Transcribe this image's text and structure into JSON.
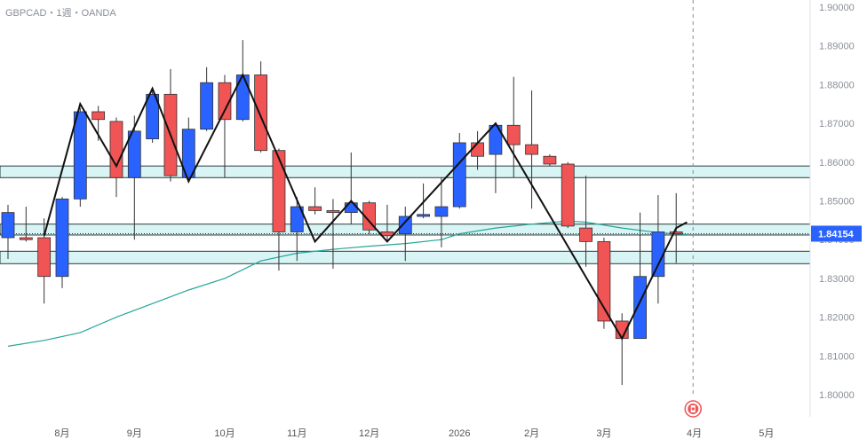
{
  "header": {
    "symbol": "GBPCAD",
    "timeframe": "1週",
    "broker": "OANDA",
    "separator": "・"
  },
  "colors": {
    "up_candle": "#2962ff",
    "down_candle": "#f05454",
    "wick": "#333333",
    "zigzag": "#111111",
    "moving_average": "#26a69a",
    "zone_fill": "#d8f4f4",
    "zone_border": "#2b3a3a",
    "price_label_bg": "#2962ff",
    "price_label_text": "#ffffff",
    "axis_text": "#8a8f99",
    "current_marker": "#f05454"
  },
  "chart_data": {
    "type": "candlestick",
    "y_range": [
      1.8,
      1.9
    ],
    "y_ticks": [
      "1.80000",
      "1.81000",
      "1.82000",
      "1.83000",
      "1.84000",
      "1.85000",
      "1.86000",
      "1.87000",
      "1.88000",
      "1.89000",
      "1.90000"
    ],
    "x_tick_labels": [
      "8月",
      "9月",
      "10月",
      "11月",
      "12月",
      "2026",
      "2月",
      "3月",
      "4月",
      "5月"
    ],
    "x_tick_weeks": [
      3,
      7,
      12,
      16,
      20,
      25,
      29,
      33,
      38,
      42
    ],
    "current_price": "1.84154",
    "candles": [
      {
        "o": 1.8405,
        "h": 1.849,
        "l": 1.835,
        "c": 1.847
      },
      {
        "o": 1.8405,
        "h": 1.8485,
        "l": 1.8395,
        "c": 1.84
      },
      {
        "o": 1.8405,
        "h": 1.8455,
        "l": 1.8235,
        "c": 1.8305
      },
      {
        "o": 1.8305,
        "h": 1.851,
        "l": 1.8275,
        "c": 1.8505
      },
      {
        "o": 1.8505,
        "h": 1.874,
        "l": 1.8485,
        "c": 1.873
      },
      {
        "o": 1.873,
        "h": 1.8745,
        "l": 1.8655,
        "c": 1.871
      },
      {
        "o": 1.8705,
        "h": 1.8715,
        "l": 1.851,
        "c": 1.856
      },
      {
        "o": 1.856,
        "h": 1.872,
        "l": 1.84,
        "c": 1.868
      },
      {
        "o": 1.866,
        "h": 1.879,
        "l": 1.865,
        "c": 1.8775
      },
      {
        "o": 1.8775,
        "h": 1.884,
        "l": 1.855,
        "c": 1.8565
      },
      {
        "o": 1.856,
        "h": 1.8715,
        "l": 1.855,
        "c": 1.8685
      },
      {
        "o": 1.8685,
        "h": 1.8845,
        "l": 1.868,
        "c": 1.8805
      },
      {
        "o": 1.8805,
        "h": 1.8825,
        "l": 1.856,
        "c": 1.871
      },
      {
        "o": 1.871,
        "h": 1.8915,
        "l": 1.8705,
        "c": 1.8825
      },
      {
        "o": 1.8825,
        "h": 1.886,
        "l": 1.8625,
        "c": 1.863
      },
      {
        "o": 1.863,
        "h": 1.8635,
        "l": 1.832,
        "c": 1.842
      },
      {
        "o": 1.842,
        "h": 1.851,
        "l": 1.8345,
        "c": 1.8485
      },
      {
        "o": 1.8485,
        "h": 1.8535,
        "l": 1.8465,
        "c": 1.8475
      },
      {
        "o": 1.8475,
        "h": 1.8505,
        "l": 1.8325,
        "c": 1.847
      },
      {
        "o": 1.847,
        "h": 1.8625,
        "l": 1.844,
        "c": 1.8495
      },
      {
        "o": 1.8495,
        "h": 1.85,
        "l": 1.8415,
        "c": 1.8425
      },
      {
        "o": 1.842,
        "h": 1.849,
        "l": 1.8395,
        "c": 1.841
      },
      {
        "o": 1.8415,
        "h": 1.8485,
        "l": 1.8345,
        "c": 1.846
      },
      {
        "o": 1.846,
        "h": 1.8545,
        "l": 1.8455,
        "c": 1.8465
      },
      {
        "o": 1.846,
        "h": 1.856,
        "l": 1.838,
        "c": 1.8485
      },
      {
        "o": 1.8485,
        "h": 1.8675,
        "l": 1.848,
        "c": 1.865
      },
      {
        "o": 1.865,
        "h": 1.868,
        "l": 1.858,
        "c": 1.8615
      },
      {
        "o": 1.862,
        "h": 1.87,
        "l": 1.852,
        "c": 1.8695
      },
      {
        "o": 1.8695,
        "h": 1.882,
        "l": 1.856,
        "c": 1.8645
      },
      {
        "o": 1.8645,
        "h": 1.8785,
        "l": 1.848,
        "c": 1.862
      },
      {
        "o": 1.8615,
        "h": 1.862,
        "l": 1.859,
        "c": 1.8595
      },
      {
        "o": 1.8595,
        "h": 1.86,
        "l": 1.843,
        "c": 1.8435
      },
      {
        "o": 1.843,
        "h": 1.8565,
        "l": 1.833,
        "c": 1.8395
      },
      {
        "o": 1.8395,
        "h": 1.8405,
        "l": 1.817,
        "c": 1.819
      },
      {
        "o": 1.819,
        "h": 1.821,
        "l": 1.8025,
        "c": 1.8145
      },
      {
        "o": 1.8145,
        "h": 1.847,
        "l": 1.8145,
        "c": 1.8305
      },
      {
        "o": 1.8305,
        "h": 1.8515,
        "l": 1.8235,
        "c": 1.842
      },
      {
        "o": 1.842,
        "h": 1.852,
        "l": 1.834,
        "c": 1.8415
      }
    ],
    "moving_average": [
      [
        0,
        1.8125
      ],
      [
        2,
        1.814
      ],
      [
        4,
        1.816
      ],
      [
        6,
        1.82
      ],
      [
        8,
        1.8235
      ],
      [
        10,
        1.827
      ],
      [
        12,
        1.83
      ],
      [
        14,
        1.8345
      ],
      [
        16,
        1.8365
      ],
      [
        18,
        1.8375
      ],
      [
        20,
        1.8383
      ],
      [
        22,
        1.839
      ],
      [
        24,
        1.84
      ],
      [
        25,
        1.8415
      ],
      [
        27,
        1.843
      ],
      [
        29,
        1.844
      ],
      [
        31,
        1.8448
      ],
      [
        32,
        1.8445
      ],
      [
        34,
        1.843
      ],
      [
        36,
        1.8418
      ],
      [
        37.6,
        1.8413
      ]
    ],
    "zigzag": [
      [
        2,
        1.841
      ],
      [
        4,
        1.875
      ],
      [
        6,
        1.859
      ],
      [
        8,
        1.879
      ],
      [
        10,
        1.855
      ],
      [
        13,
        1.8825
      ],
      [
        17,
        1.8395
      ],
      [
        19,
        1.85
      ],
      [
        21,
        1.8395
      ],
      [
        27,
        1.87
      ],
      [
        34,
        1.8145
      ],
      [
        37,
        1.843
      ],
      [
        37.6,
        1.8445
      ]
    ],
    "zones": [
      {
        "top": 1.859,
        "bottom": 1.856
      },
      {
        "top": 1.844,
        "bottom": 1.8412
      },
      {
        "top": 1.837,
        "bottom": 1.8338
      }
    ]
  }
}
